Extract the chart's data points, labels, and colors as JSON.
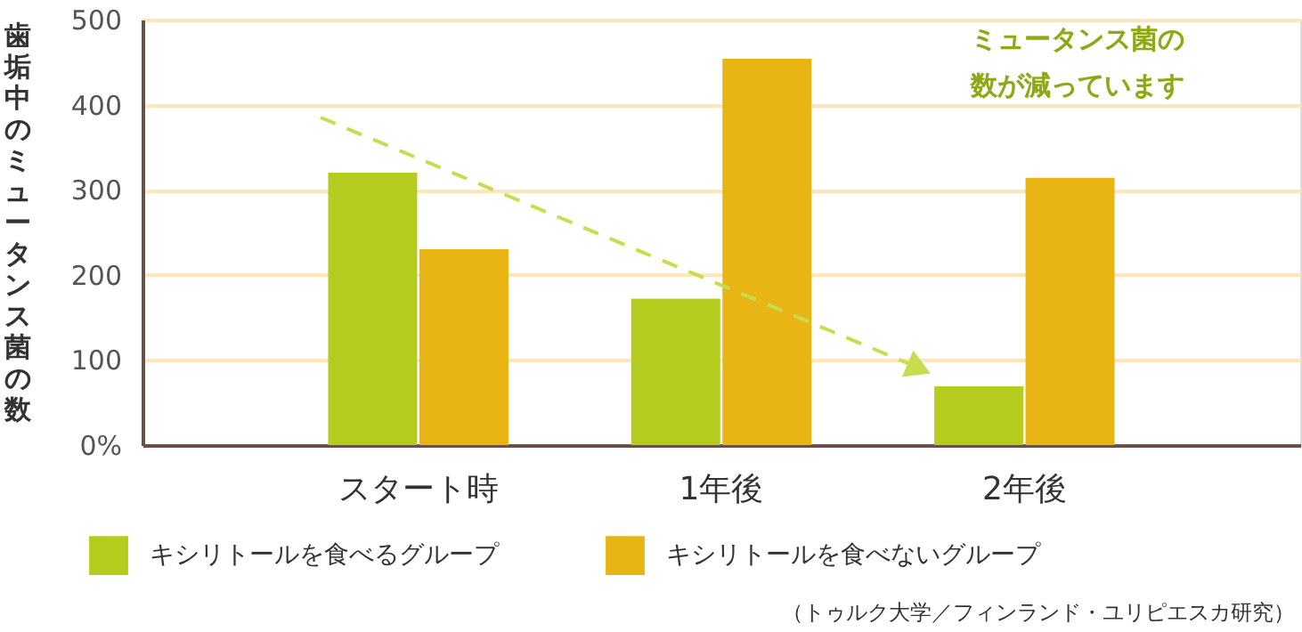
{
  "chart_data": {
    "type": "bar",
    "ylabel": "歯垢中のミュータンス菌の数",
    "categories": [
      "スタート時",
      "1年後",
      "2年後"
    ],
    "series": [
      {
        "name": "キシリトールを食べるグループ",
        "color": "#b5cc1e",
        "values": [
          320,
          172,
          69
        ]
      },
      {
        "name": "キシリトールを食べないグループ",
        "color": "#e8b514",
        "values": [
          230,
          454,
          314
        ]
      }
    ],
    "ylim": [
      0,
      500
    ],
    "yticks": [
      {
        "value": 0,
        "label": "0%"
      },
      100,
      200,
      300,
      400,
      500
    ],
    "grid": "y",
    "legend": "bottom",
    "annotations": [
      "ミュータンス菌の数が減っています",
      "（トゥルク大学／フィンランド・ユリピエスカ研究）"
    ]
  }
}
